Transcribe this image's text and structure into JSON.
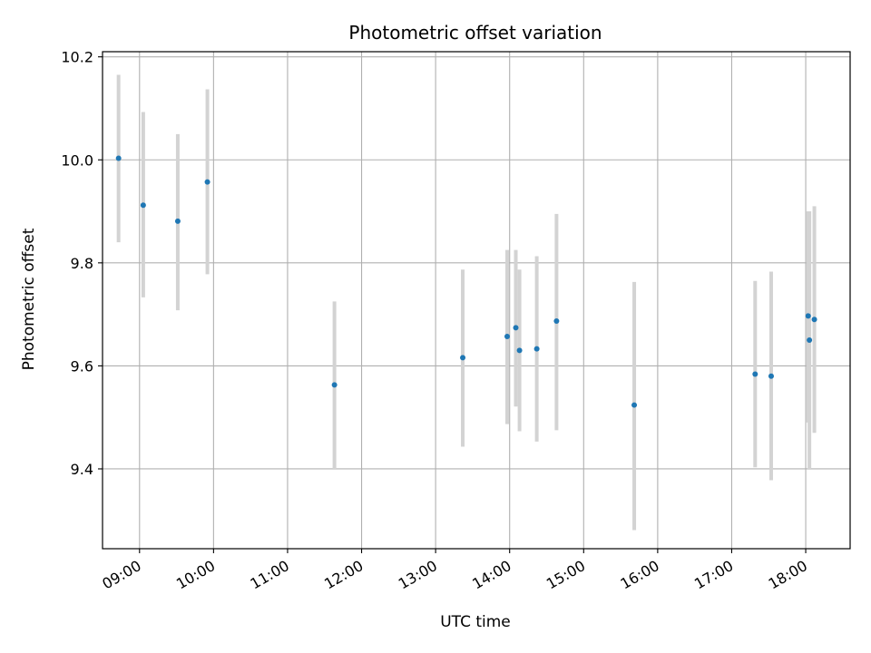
{
  "chart_data": {
    "type": "scatter",
    "title": "Photometric offset variation",
    "xlabel": "UTC time",
    "ylabel": "Photometric offset",
    "x_type": "time",
    "xlim": [
      "08:30",
      "18:36"
    ],
    "ylim": [
      9.245,
      10.21
    ],
    "grid": true,
    "x_ticks": [
      "09:00",
      "10:00",
      "11:00",
      "12:00",
      "13:00",
      "14:00",
      "15:00",
      "16:00",
      "17:00",
      "18:00"
    ],
    "y_ticks": [
      9.4,
      9.6,
      9.8,
      10.0,
      10.2
    ],
    "y_tick_labels": [
      "9.4",
      "9.6",
      "9.8",
      "10.0",
      "10.2"
    ],
    "colors": {
      "point": "#1f77b4",
      "errorbar": "#d3d3d3",
      "grid": "#b0b0b0",
      "axis": "#000000"
    },
    "series": [
      {
        "points": [
          {
            "x": "08:43",
            "y": 10.003,
            "ylow": 9.84,
            "yhigh": 10.165
          },
          {
            "x": "09:03",
            "y": 9.912,
            "ylow": 9.733,
            "yhigh": 10.093
          },
          {
            "x": "09:31",
            "y": 9.881,
            "ylow": 9.708,
            "yhigh": 10.05
          },
          {
            "x": "09:55",
            "y": 9.957,
            "ylow": 9.778,
            "yhigh": 10.137
          },
          {
            "x": "11:38",
            "y": 9.563,
            "ylow": 9.4,
            "yhigh": 9.725
          },
          {
            "x": "13:22",
            "y": 9.616,
            "ylow": 9.443,
            "yhigh": 9.787
          },
          {
            "x": "13:58",
            "y": 9.657,
            "ylow": 9.487,
            "yhigh": 9.825
          },
          {
            "x": "14:05",
            "y": 9.674,
            "ylow": 9.521,
            "yhigh": 9.825
          },
          {
            "x": "14:08",
            "y": 9.63,
            "ylow": 9.473,
            "yhigh": 9.787
          },
          {
            "x": "14:22",
            "y": 9.633,
            "ylow": 9.453,
            "yhigh": 9.813
          },
          {
            "x": "14:38",
            "y": 9.687,
            "ylow": 9.475,
            "yhigh": 9.895
          },
          {
            "x": "15:41",
            "y": 9.524,
            "ylow": 9.281,
            "yhigh": 9.763
          },
          {
            "x": "17:19",
            "y": 9.584,
            "ylow": 9.403,
            "yhigh": 9.765
          },
          {
            "x": "17:32",
            "y": 9.58,
            "ylow": 9.378,
            "yhigh": 9.783
          },
          {
            "x": "18:02",
            "y": 9.697,
            "ylow": 9.49,
            "yhigh": 9.9
          },
          {
            "x": "18:03",
            "y": 9.65,
            "ylow": 9.4,
            "yhigh": 9.9
          },
          {
            "x": "18:07",
            "y": 9.69,
            "ylow": 9.47,
            "yhigh": 9.91
          }
        ]
      }
    ]
  }
}
